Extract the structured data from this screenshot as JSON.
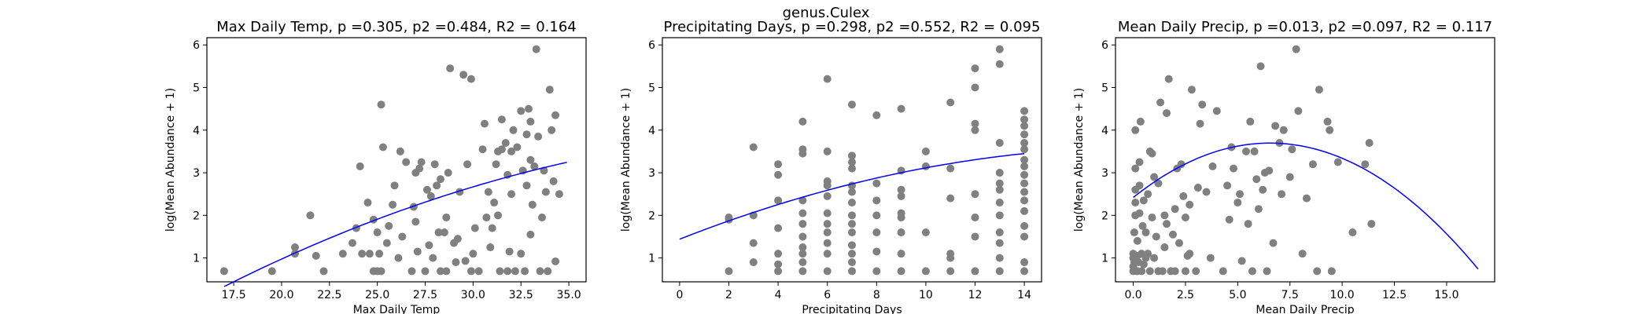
{
  "suptitle": "genus.Culex",
  "colors": {
    "points": "#808080",
    "fit": "#0000ff",
    "axes": "#000000"
  },
  "chart_data": [
    {
      "type": "scatter",
      "title": "Max Daily Temp, p =0.305, p2 =0.484, R2 = 0.164",
      "xlabel": "Max Daily Temp",
      "ylabel": "log(Mean Abundance + 1)",
      "xlim": [
        16.1,
        35.9
      ],
      "ylim": [
        0.44,
        6.17
      ],
      "xticks": [
        17.5,
        20.0,
        22.5,
        25.0,
        27.5,
        30.0,
        32.5,
        35.0
      ],
      "xtick_labels": [
        "17.5",
        "20.0",
        "22.5",
        "25.0",
        "27.5",
        "30.0",
        "32.5",
        "35.0"
      ],
      "yticks": [
        1,
        2,
        3,
        4,
        5,
        6
      ],
      "ytick_labels": [
        "1",
        "2",
        "3",
        "4",
        "5",
        "6"
      ],
      "fit": {
        "type": "quadratic",
        "x_range": [
          17.0,
          34.9
        ],
        "a": -0.00349,
        "b": 0.344,
        "c": -4.51
      },
      "points": [
        [
          17.0,
          0.69
        ],
        [
          19.5,
          0.69
        ],
        [
          20.7,
          1.1
        ],
        [
          20.7,
          1.25
        ],
        [
          21.5,
          2.0
        ],
        [
          21.8,
          1.05
        ],
        [
          22.2,
          0.69
        ],
        [
          23.2,
          1.1
        ],
        [
          23.7,
          1.35
        ],
        [
          23.9,
          1.7
        ],
        [
          24.1,
          3.15
        ],
        [
          24.2,
          1.1
        ],
        [
          24.5,
          2.3
        ],
        [
          24.6,
          1.1
        ],
        [
          24.8,
          0.69
        ],
        [
          24.8,
          1.9
        ],
        [
          25.0,
          1.6
        ],
        [
          25.0,
          0.69
        ],
        [
          25.1,
          1.1
        ],
        [
          25.2,
          0.69
        ],
        [
          25.2,
          4.6
        ],
        [
          25.3,
          3.6
        ],
        [
          25.5,
          1.35
        ],
        [
          25.6,
          1.75
        ],
        [
          25.8,
          2.25
        ],
        [
          25.9,
          2.7
        ],
        [
          26.1,
          1.0
        ],
        [
          26.2,
          3.5
        ],
        [
          26.3,
          1.5
        ],
        [
          26.5,
          3.25
        ],
        [
          26.8,
          0.69
        ],
        [
          26.9,
          2.2
        ],
        [
          27.0,
          1.85
        ],
        [
          27.0,
          3.0
        ],
        [
          27.1,
          1.15
        ],
        [
          27.2,
          3.1
        ],
        [
          27.3,
          3.25
        ],
        [
          27.5,
          0.69
        ],
        [
          27.6,
          2.6
        ],
        [
          27.7,
          1.3
        ],
        [
          27.8,
          2.45
        ],
        [
          27.9,
          1.0
        ],
        [
          28.0,
          3.2
        ],
        [
          28.1,
          2.7
        ],
        [
          28.2,
          1.6
        ],
        [
          28.3,
          2.85
        ],
        [
          28.5,
          1.6
        ],
        [
          28.6,
          0.69
        ],
        [
          28.6,
          1.95
        ],
        [
          28.7,
          3.0
        ],
        [
          28.8,
          5.45
        ],
        [
          29.0,
          1.35
        ],
        [
          29.1,
          0.9
        ],
        [
          29.2,
          1.45
        ],
        [
          29.3,
          2.55
        ],
        [
          29.5,
          5.3
        ],
        [
          29.6,
          0.93
        ],
        [
          29.7,
          3.2
        ],
        [
          29.9,
          5.2
        ],
        [
          29.9,
          0.69
        ],
        [
          30.0,
          1.1
        ],
        [
          30.1,
          1.7
        ],
        [
          30.3,
          0.69
        ],
        [
          30.5,
          3.55
        ],
        [
          30.6,
          4.15
        ],
        [
          30.7,
          1.95
        ],
        [
          30.8,
          2.55
        ],
        [
          31.0,
          1.7
        ],
        [
          31.1,
          2.3
        ],
        [
          31.2,
          3.2
        ],
        [
          31.3,
          2.0
        ],
        [
          31.3,
          3.5
        ],
        [
          31.5,
          3.55
        ],
        [
          31.5,
          4.25
        ],
        [
          31.7,
          3.7
        ],
        [
          31.8,
          0.69
        ],
        [
          31.8,
          2.95
        ],
        [
          31.9,
          1.15
        ],
        [
          32.0,
          2.5
        ],
        [
          32.0,
          3.5
        ],
        [
          32.1,
          4.0
        ],
        [
          32.2,
          0.69
        ],
        [
          32.3,
          3.6
        ],
        [
          32.5,
          1.1
        ],
        [
          32.5,
          4.45
        ],
        [
          32.6,
          3.05
        ],
        [
          32.7,
          0.69
        ],
        [
          32.8,
          2.7
        ],
        [
          32.8,
          3.9
        ],
        [
          32.9,
          4.5
        ],
        [
          33.0,
          1.55
        ],
        [
          33.0,
          3.3
        ],
        [
          33.0,
          4.2
        ],
        [
          33.1,
          2.25
        ],
        [
          33.2,
          3.15
        ],
        [
          33.3,
          5.9
        ],
        [
          33.4,
          3.85
        ],
        [
          33.5,
          0.69
        ],
        [
          33.6,
          1.95
        ],
        [
          33.7,
          3.05
        ],
        [
          33.8,
          2.55
        ],
        [
          33.9,
          0.69
        ],
        [
          34.0,
          4.95
        ],
        [
          34.2,
          2.8
        ],
        [
          34.3,
          0.92
        ],
        [
          34.3,
          4.35
        ],
        [
          34.5,
          2.5
        ],
        [
          34.1,
          4.0
        ],
        [
          31.4,
          0.69
        ],
        [
          30.9,
          1.25
        ],
        [
          28.3,
          0.69
        ]
      ]
    },
    {
      "type": "scatter",
      "title": "Precipitating Days, p =0.298, p2 =0.552, R2 = 0.095",
      "xlabel": "Precipitating Days",
      "ylabel": "log(Mean Abundance + 1)",
      "xlim": [
        -0.7,
        14.7
      ],
      "ylim": [
        0.44,
        6.17
      ],
      "xticks": [
        0,
        2,
        4,
        6,
        8,
        10,
        12,
        14
      ],
      "xtick_labels": [
        "0",
        "2",
        "4",
        "6",
        "8",
        "10",
        "12",
        "14"
      ],
      "yticks": [
        1,
        2,
        3,
        4,
        5,
        6
      ],
      "ytick_labels": [
        "1",
        "2",
        "3",
        "4",
        "5",
        "6"
      ],
      "fit": {
        "type": "quadratic",
        "x_range": [
          0,
          14
        ],
        "a": -0.00599,
        "b": 0.2274,
        "c": 1.44
      },
      "points": [
        [
          2,
          0.69
        ],
        [
          2,
          1.9
        ],
        [
          2,
          1.95
        ],
        [
          3,
          0.9
        ],
        [
          3,
          1.35
        ],
        [
          3,
          2.0
        ],
        [
          3,
          3.6
        ],
        [
          4,
          0.69
        ],
        [
          4,
          0.85
        ],
        [
          4,
          1.1
        ],
        [
          4,
          1.7
        ],
        [
          4,
          2.35
        ],
        [
          4,
          2.95
        ],
        [
          4,
          3.2
        ],
        [
          5,
          0.69
        ],
        [
          5,
          0.9
        ],
        [
          5,
          1.1
        ],
        [
          5,
          1.25
        ],
        [
          5,
          1.5
        ],
        [
          5,
          1.8
        ],
        [
          5,
          2.05
        ],
        [
          5,
          2.35
        ],
        [
          5,
          3.45
        ],
        [
          5,
          3.55
        ],
        [
          5,
          4.2
        ],
        [
          6,
          0.69
        ],
        [
          6,
          1.1
        ],
        [
          6,
          1.35
        ],
        [
          6,
          1.6
        ],
        [
          6,
          1.8
        ],
        [
          6,
          2.05
        ],
        [
          6,
          2.45
        ],
        [
          6,
          2.7
        ],
        [
          6,
          2.8
        ],
        [
          6,
          3.5
        ],
        [
          6,
          5.2
        ],
        [
          7,
          0.69
        ],
        [
          7,
          0.9
        ],
        [
          7,
          1.1
        ],
        [
          7,
          1.3
        ],
        [
          7,
          1.6
        ],
        [
          7,
          1.8
        ],
        [
          7,
          2.0
        ],
        [
          7,
          2.3
        ],
        [
          7,
          2.55
        ],
        [
          7,
          2.7
        ],
        [
          7,
          3.1
        ],
        [
          7,
          3.25
        ],
        [
          7,
          3.4
        ],
        [
          7,
          4.6
        ],
        [
          8,
          0.69
        ],
        [
          8,
          1.15
        ],
        [
          8,
          1.6
        ],
        [
          8,
          2.0
        ],
        [
          8,
          2.35
        ],
        [
          8,
          2.75
        ],
        [
          8,
          4.35
        ],
        [
          9,
          0.69
        ],
        [
          9,
          1.1
        ],
        [
          9,
          1.6
        ],
        [
          9,
          1.95
        ],
        [
          9,
          2.05
        ],
        [
          9,
          2.45
        ],
        [
          9,
          2.6
        ],
        [
          9,
          3.05
        ],
        [
          9,
          4.5
        ],
        [
          10,
          0.69
        ],
        [
          10,
          1.6
        ],
        [
          10,
          3.15
        ],
        [
          10,
          3.5
        ],
        [
          11,
          0.69
        ],
        [
          11,
          1.0
        ],
        [
          11,
          1.1
        ],
        [
          11,
          2.4
        ],
        [
          11,
          3.1
        ],
        [
          11,
          4.65
        ],
        [
          12,
          0.69
        ],
        [
          12,
          1.5
        ],
        [
          12,
          1.95
        ],
        [
          12,
          2.5
        ],
        [
          12,
          4.0
        ],
        [
          12,
          4.15
        ],
        [
          12,
          5.0
        ],
        [
          12,
          5.45
        ],
        [
          13,
          0.69
        ],
        [
          13,
          1.0
        ],
        [
          13,
          1.35
        ],
        [
          13,
          1.6
        ],
        [
          13,
          2.0
        ],
        [
          13,
          2.3
        ],
        [
          13,
          2.6
        ],
        [
          13,
          2.75
        ],
        [
          13,
          3.0
        ],
        [
          13,
          3.7
        ],
        [
          13,
          5.55
        ],
        [
          13,
          5.9
        ],
        [
          14,
          0.69
        ],
        [
          14,
          0.9
        ],
        [
          14,
          1.5
        ],
        [
          14,
          1.75
        ],
        [
          14,
          2.1
        ],
        [
          14,
          2.35
        ],
        [
          14,
          2.55
        ],
        [
          14,
          2.75
        ],
        [
          14,
          2.95
        ],
        [
          14,
          3.15
        ],
        [
          14,
          3.3
        ],
        [
          14,
          3.55
        ],
        [
          14,
          3.7
        ],
        [
          14,
          3.9
        ],
        [
          14,
          4.1
        ],
        [
          14,
          4.25
        ],
        [
          14,
          4.45
        ]
      ]
    },
    {
      "type": "scatter",
      "title": "Mean Daily Precip, p =0.013, p2 =0.097, R2 = 0.117",
      "xlabel": "Mean Daily Precip",
      "ylabel": "log(Mean Abundance + 1)",
      "xlim": [
        -0.85,
        17.3
      ],
      "ylim": [
        0.44,
        6.17
      ],
      "xticks": [
        0.0,
        2.5,
        5.0,
        7.5,
        10.0,
        12.5,
        15.0
      ],
      "xtick_labels": [
        "0.0",
        "2.5",
        "5.0",
        "7.5",
        "10.0",
        "12.5",
        "15.0"
      ],
      "yticks": [
        1,
        2,
        3,
        4,
        5,
        6
      ],
      "ytick_labels": [
        "1",
        "2",
        "3",
        "4",
        "5",
        "6"
      ],
      "fit": {
        "type": "quadratic",
        "x_range": [
          0,
          16.5
        ],
        "a": -0.0298,
        "b": 0.39,
        "c": 2.42
      },
      "points": [
        [
          0.0,
          0.69
        ],
        [
          0.0,
          0.8
        ],
        [
          0.0,
          1.0
        ],
        [
          0.0,
          1.1
        ],
        [
          0.05,
          0.9
        ],
        [
          0.05,
          1.6
        ],
        [
          0.1,
          2.0
        ],
        [
          0.1,
          2.3
        ],
        [
          0.1,
          2.6
        ],
        [
          0.1,
          3.1
        ],
        [
          0.1,
          4.0
        ],
        [
          0.15,
          0.69
        ],
        [
          0.2,
          1.05
        ],
        [
          0.2,
          1.4
        ],
        [
          0.25,
          0.9
        ],
        [
          0.3,
          2.05
        ],
        [
          0.3,
          2.7
        ],
        [
          0.3,
          3.25
        ],
        [
          0.35,
          4.2
        ],
        [
          0.4,
          0.69
        ],
        [
          0.4,
          1.1
        ],
        [
          0.45,
          1.75
        ],
        [
          0.5,
          0.85
        ],
        [
          0.5,
          2.35
        ],
        [
          0.6,
          1.0
        ],
        [
          0.6,
          1.6
        ],
        [
          0.7,
          1.1
        ],
        [
          0.7,
          2.5
        ],
        [
          0.8,
          0.69
        ],
        [
          0.8,
          3.5
        ],
        [
          0.9,
          3.45
        ],
        [
          0.9,
          1.95
        ],
        [
          1.0,
          2.9
        ],
        [
          1.0,
          1.0
        ],
        [
          1.1,
          1.5
        ],
        [
          1.2,
          2.75
        ],
        [
          1.3,
          4.65
        ],
        [
          1.4,
          0.69
        ],
        [
          1.5,
          1.25
        ],
        [
          1.5,
          2.0
        ],
        [
          1.6,
          1.8
        ],
        [
          1.6,
          4.4
        ],
        [
          1.7,
          5.2
        ],
        [
          1.8,
          0.69
        ],
        [
          1.9,
          1.55
        ],
        [
          2.0,
          0.69
        ],
        [
          2.0,
          2.15
        ],
        [
          2.1,
          3.1
        ],
        [
          2.2,
          1.35
        ],
        [
          2.3,
          3.2
        ],
        [
          2.4,
          2.45
        ],
        [
          2.5,
          0.69
        ],
        [
          2.5,
          1.95
        ],
        [
          2.6,
          1.05
        ],
        [
          2.7,
          1.1
        ],
        [
          2.7,
          2.25
        ],
        [
          2.8,
          4.95
        ],
        [
          3.0,
          0.69
        ],
        [
          3.1,
          2.65
        ],
        [
          3.2,
          4.15
        ],
        [
          3.3,
          4.6
        ],
        [
          3.5,
          2.55
        ],
        [
          3.7,
          1.0
        ],
        [
          3.8,
          3.15
        ],
        [
          4.0,
          4.45
        ],
        [
          4.3,
          0.69
        ],
        [
          4.5,
          2.7
        ],
        [
          4.7,
          3.6
        ],
        [
          4.8,
          3.1
        ],
        [
          5.0,
          2.3
        ],
        [
          5.1,
          2.5
        ],
        [
          5.2,
          0.93
        ],
        [
          5.4,
          3.5
        ],
        [
          5.5,
          1.8
        ],
        [
          5.6,
          4.2
        ],
        [
          5.7,
          0.69
        ],
        [
          5.8,
          3.5
        ],
        [
          5.9,
          2.85
        ],
        [
          6.0,
          2.15
        ],
        [
          6.1,
          5.5
        ],
        [
          6.2,
          2.6
        ],
        [
          6.3,
          3.0
        ],
        [
          6.5,
          3.05
        ],
        [
          6.7,
          1.35
        ],
        [
          6.8,
          4.1
        ],
        [
          7.0,
          3.7
        ],
        [
          7.1,
          2.5
        ],
        [
          7.2,
          4.0
        ],
        [
          7.5,
          2.9
        ],
        [
          7.6,
          3.55
        ],
        [
          7.8,
          5.9
        ],
        [
          7.9,
          4.45
        ],
        [
          8.1,
          1.1
        ],
        [
          8.3,
          2.4
        ],
        [
          8.6,
          3.2
        ],
        [
          8.8,
          0.69
        ],
        [
          8.9,
          4.95
        ],
        [
          9.3,
          4.2
        ],
        [
          9.4,
          4.0
        ],
        [
          9.8,
          3.25
        ],
        [
          10.5,
          1.6
        ],
        [
          11.1,
          3.2
        ],
        [
          11.3,
          3.7
        ],
        [
          11.4,
          1.8
        ],
        [
          0.2,
          0.69
        ],
        [
          1.2,
          0.69
        ],
        [
          4.6,
          1.9
        ],
        [
          6.4,
          0.69
        ],
        [
          9.5,
          0.69
        ]
      ]
    }
  ]
}
